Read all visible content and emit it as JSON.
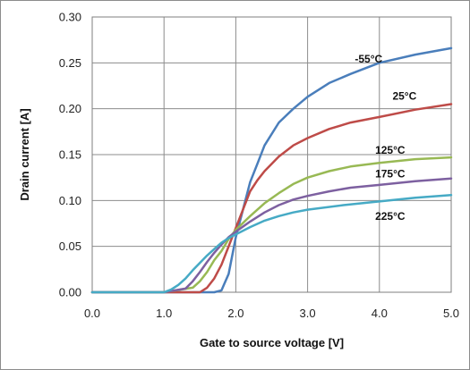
{
  "chart_data": {
    "type": "line",
    "title": "",
    "xlabel": "Gate to source voltage [V]",
    "ylabel": "Drain current [A]",
    "xlim": [
      0.0,
      5.0
    ],
    "ylim": [
      0.0,
      0.3
    ],
    "x_ticks": [
      "0.0",
      "1.0",
      "2.0",
      "3.0",
      "4.0",
      "5.0"
    ],
    "y_ticks": [
      "0.00",
      "0.05",
      "0.10",
      "0.15",
      "0.20",
      "0.25",
      "0.30"
    ],
    "x_tick_values": [
      0,
      1,
      2,
      3,
      4,
      5
    ],
    "y_tick_values": [
      0,
      0.05,
      0.1,
      0.15,
      0.2,
      0.25,
      0.3
    ],
    "grid": true,
    "legend": "none",
    "series": [
      {
        "name": "-55°C",
        "color": "#4a7ebb",
        "x": [
          0.0,
          1.0,
          1.5,
          1.7,
          1.8,
          1.9,
          2.0,
          2.1,
          2.2,
          2.3,
          2.4,
          2.6,
          2.8,
          3.0,
          3.3,
          3.6,
          4.0,
          4.5,
          5.0
        ],
        "y": [
          0.0,
          0.0,
          0.0,
          0.0,
          0.002,
          0.02,
          0.06,
          0.09,
          0.12,
          0.14,
          0.16,
          0.185,
          0.2,
          0.213,
          0.228,
          0.238,
          0.25,
          0.259,
          0.266
        ]
      },
      {
        "name": "25°C",
        "color": "#be4b48",
        "x": [
          0.0,
          1.0,
          1.5,
          1.6,
          1.7,
          1.8,
          1.9,
          2.0,
          2.1,
          2.2,
          2.3,
          2.4,
          2.6,
          2.8,
          3.0,
          3.3,
          3.6,
          4.0,
          4.5,
          5.0
        ],
        "y": [
          0.0,
          0.0,
          0.0,
          0.005,
          0.015,
          0.03,
          0.05,
          0.07,
          0.09,
          0.11,
          0.122,
          0.132,
          0.148,
          0.16,
          0.168,
          0.178,
          0.185,
          0.191,
          0.199,
          0.205
        ]
      },
      {
        "name": "125°C",
        "color": "#98b954",
        "x": [
          0.0,
          1.0,
          1.4,
          1.5,
          1.6,
          1.7,
          1.8,
          1.9,
          2.0,
          2.2,
          2.4,
          2.6,
          2.8,
          3.0,
          3.3,
          3.6,
          4.0,
          4.5,
          5.0
        ],
        "y": [
          0.0,
          0.0,
          0.005,
          0.012,
          0.022,
          0.035,
          0.045,
          0.058,
          0.068,
          0.083,
          0.097,
          0.108,
          0.118,
          0.125,
          0.132,
          0.137,
          0.141,
          0.145,
          0.147
        ]
      },
      {
        "name": "175°C",
        "color": "#7d60a0",
        "x": [
          0.0,
          1.0,
          1.3,
          1.4,
          1.5,
          1.6,
          1.7,
          1.8,
          1.9,
          2.0,
          2.2,
          2.4,
          2.6,
          2.8,
          3.0,
          3.3,
          3.6,
          4.0,
          4.5,
          5.0
        ],
        "y": [
          0.0,
          0.0,
          0.004,
          0.012,
          0.022,
          0.033,
          0.043,
          0.052,
          0.06,
          0.066,
          0.077,
          0.087,
          0.095,
          0.101,
          0.105,
          0.11,
          0.114,
          0.117,
          0.121,
          0.124
        ]
      },
      {
        "name": "225°C",
        "color": "#46aac5",
        "x": [
          0.0,
          1.0,
          1.1,
          1.2,
          1.3,
          1.4,
          1.5,
          1.6,
          1.7,
          1.8,
          1.9,
          2.0,
          2.2,
          2.4,
          2.6,
          2.8,
          3.0,
          3.5,
          4.0,
          4.5,
          5.0
        ],
        "y": [
          0.0,
          0.0,
          0.003,
          0.008,
          0.015,
          0.024,
          0.032,
          0.04,
          0.047,
          0.054,
          0.059,
          0.063,
          0.071,
          0.078,
          0.083,
          0.087,
          0.09,
          0.095,
          0.099,
          0.103,
          0.106
        ]
      }
    ],
    "annotations": [
      {
        "text": "-55°C",
        "series": "-55°C",
        "x": 3.85,
        "y": 0.254
      },
      {
        "text": "25°C",
        "series": "25°C",
        "x": 4.35,
        "y": 0.214
      },
      {
        "text": "125°C",
        "series": "125°C",
        "x": 4.15,
        "y": 0.155
      },
      {
        "text": "175°C",
        "series": "175°C",
        "x": 4.15,
        "y": 0.129
      },
      {
        "text": "225°C",
        "series": "225°C",
        "x": 4.15,
        "y": 0.083
      }
    ]
  }
}
